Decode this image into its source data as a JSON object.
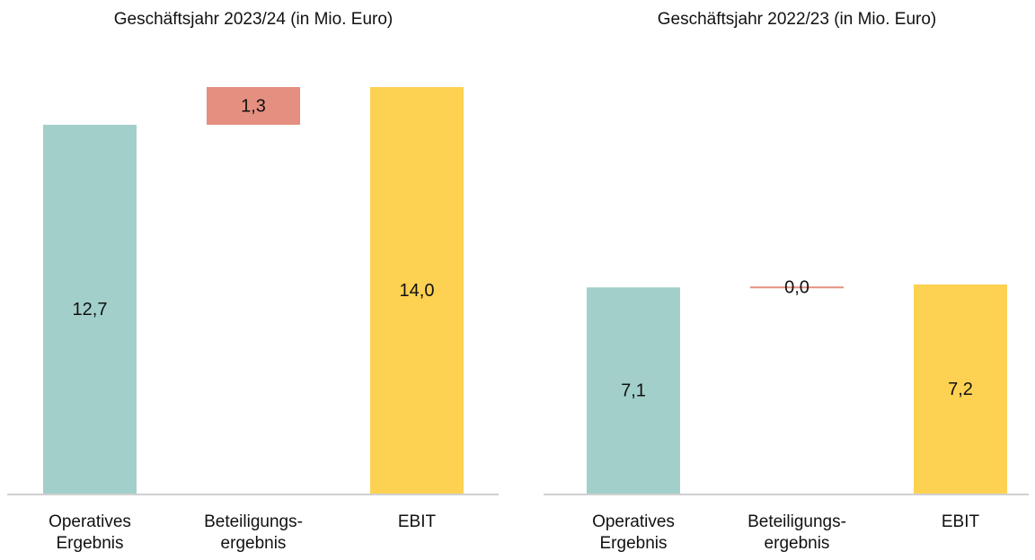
{
  "chart_data": [
    {
      "type": "waterfall",
      "title": "Geschäftsjahr 2023/24 (in Mio. Euro)",
      "categories": [
        "Operatives\nErgebnis",
        "Beteiligungs-\nergebnis",
        "EBIT"
      ],
      "values": [
        12.7,
        1.3,
        14.0
      ],
      "value_labels": [
        "12,7",
        "1,3",
        "14,0"
      ],
      "colors": [
        "#a2cfc9",
        "#e48f80",
        "#fdd152"
      ],
      "ylim": [
        0,
        14
      ]
    },
    {
      "type": "waterfall",
      "title": "Geschäftsjahr 2022/23 (in Mio. Euro)",
      "categories": [
        "Operatives\nErgebnis",
        "Beteiligungs-\nergebnis",
        "EBIT"
      ],
      "values": [
        7.1,
        0.0,
        7.2
      ],
      "value_labels": [
        "7,1",
        "0,0",
        "7,2"
      ],
      "colors": [
        "#a2cfc9",
        "#e48f80",
        "#fdd152"
      ],
      "ylim": [
        0,
        14
      ]
    }
  ]
}
